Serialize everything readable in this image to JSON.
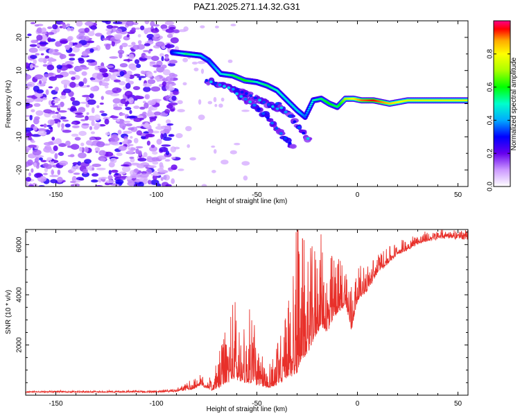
{
  "figure": {
    "title": "PAZ1.2025.271.14.32.G31"
  },
  "chart_data": [
    {
      "type": "heatmap",
      "xlabel": "Height of straight line (km)",
      "ylabel": "Frequency (Hz)",
      "xlim": [
        -165,
        55
      ],
      "ylim": [
        -25,
        25
      ],
      "xticks": [
        -150,
        -100,
        -50,
        0,
        50
      ],
      "yticks": [
        -20,
        -10,
        0,
        10,
        20
      ],
      "colorbar": {
        "label": "Normalized spectral amplitude",
        "range": [
          0,
          1
        ],
        "ticks": [
          0.0,
          0.2,
          0.4,
          0.6,
          0.8
        ]
      },
      "signal_track": {
        "height_km": [
          -92,
          -85,
          -78,
          -74,
          -68,
          -62,
          -56,
          -50,
          -45,
          -40,
          -35,
          -30,
          -26,
          -22,
          -18,
          -14,
          -10,
          -6,
          -2,
          2,
          8,
          16,
          25,
          35,
          45,
          55
        ],
        "frequency_hz": [
          15.5,
          15,
          14.5,
          13,
          9,
          8.5,
          7,
          6.5,
          5.5,
          4,
          1,
          -2,
          -4,
          1,
          1.5,
          0,
          -1,
          1.5,
          1.5,
          1,
          1,
          0,
          1,
          1,
          1,
          1
        ],
        "amplitude": [
          0.3,
          0.55,
          0.45,
          0.35,
          0.45,
          0.55,
          0.6,
          0.5,
          0.55,
          0.5,
          0.45,
          0.45,
          0.35,
          0.5,
          0.55,
          0.6,
          0.55,
          0.7,
          0.8,
          0.9,
          0.95,
          0.85,
          0.75,
          0.75,
          0.75,
          0.75
        ]
      },
      "branches": [
        {
          "height_km": [
            -75,
            -65,
            -55,
            -45,
            -38
          ],
          "frequency_hz": [
            7,
            5,
            3,
            0,
            -2
          ]
        },
        {
          "height_km": [
            -60,
            -52,
            -45,
            -38,
            -32
          ],
          "frequency_hz": [
            3,
            0,
            -4,
            -9,
            -13
          ]
        },
        {
          "height_km": [
            -40,
            -33,
            -28,
            -24
          ],
          "frequency_hz": [
            0,
            -4,
            -8,
            -11
          ]
        }
      ],
      "noise_region_km": [
        -165,
        -90
      ]
    },
    {
      "type": "line",
      "xlabel": "Height of straight line (km)",
      "ylabel": "SNR (10 * v/v)",
      "xlim": [
        -165,
        55
      ],
      "ylim": [
        0,
        6600
      ],
      "xticks": [
        -150,
        -100,
        -50,
        0,
        50
      ],
      "yticks": [
        2000,
        4000,
        6000
      ],
      "color": "#e8302a",
      "envelope": {
        "height_km": [
          -165,
          -100,
          -90,
          -82,
          -78,
          -72,
          -65,
          -61,
          -59,
          -55,
          -52,
          -50,
          -45,
          -40,
          -35,
          -32,
          -30,
          -28,
          -25,
          -22,
          -18,
          -15,
          -12,
          -10,
          -6,
          -3,
          -1,
          0,
          5,
          10,
          20,
          30,
          40,
          45,
          50,
          55
        ],
        "base": [
          120,
          120,
          150,
          250,
          400,
          200,
          500,
          700,
          600,
          500,
          550,
          400,
          300,
          400,
          700,
          800,
          900,
          1500,
          1600,
          2200,
          2800,
          2500,
          3000,
          3300,
          3600,
          2600,
          3400,
          3800,
          4200,
          4900,
          5600,
          6050,
          6250,
          6300,
          6250,
          6250
        ],
        "spike": [
          40,
          60,
          80,
          300,
          300,
          400,
          1800,
          2600,
          2000,
          1600,
          3100,
          1200,
          700,
          1300,
          2200,
          4200,
          5600,
          4200,
          3000,
          3000,
          2800,
          2200,
          2200,
          1800,
          1500,
          1600,
          1200,
          1000,
          800,
          600,
          400,
          300,
          250,
          250,
          250,
          250
        ]
      }
    }
  ]
}
